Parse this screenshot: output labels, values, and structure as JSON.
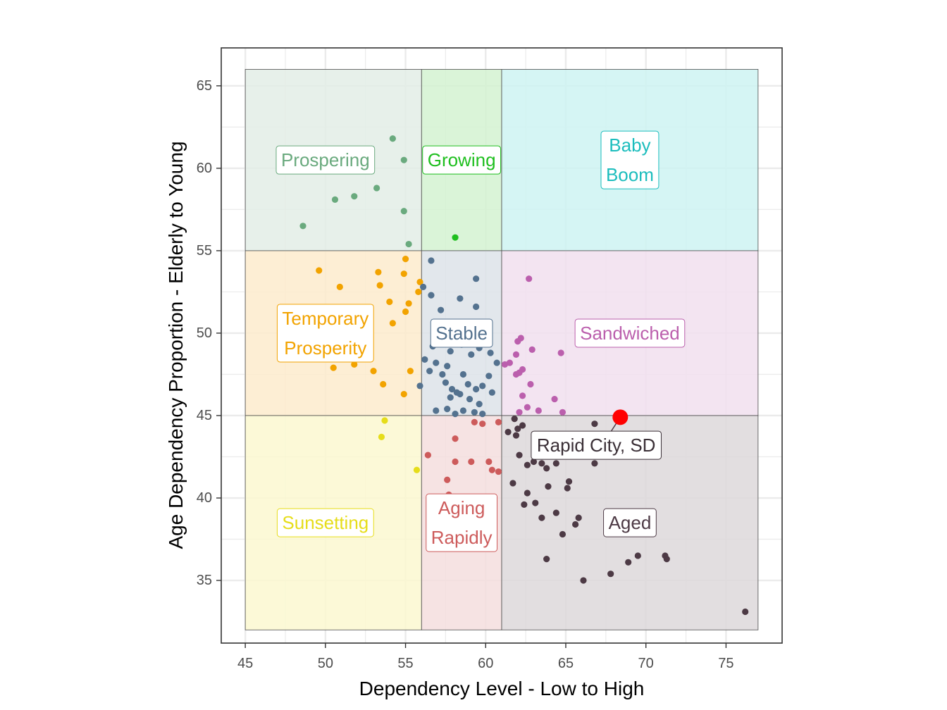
{
  "chart_data": {
    "type": "scatter",
    "xlabel": "Dependency Level - Low to High",
    "ylabel": "Age Dependency Proportion - Elderly to Young",
    "xlim": [
      43.5,
      78.5
    ],
    "ylim": [
      31.2,
      67.3
    ],
    "x_ticks": [
      45,
      50,
      55,
      60,
      65,
      70,
      75
    ],
    "y_ticks": [
      35,
      40,
      45,
      50,
      55,
      60,
      65
    ],
    "grid": true,
    "legend": "none",
    "regions": [
      {
        "label": [
          "Prospering"
        ],
        "x": [
          45,
          56
        ],
        "y": [
          55,
          66
        ],
        "color": "#6aaa7e",
        "fill": "#e3ede6",
        "label_at": [
          50,
          60.5
        ]
      },
      {
        "label": [
          "Growing"
        ],
        "x": [
          56,
          61
        ],
        "y": [
          55,
          66
        ],
        "color": "#1fbf1f",
        "fill": "#d3f2d1",
        "label_at": [
          58.5,
          60.5
        ]
      },
      {
        "label": [
          "Baby",
          "Boom"
        ],
        "x": [
          61,
          77
        ],
        "y": [
          55,
          66
        ],
        "color": "#1cbdbd",
        "fill": "#cef3f2",
        "label_at": [
          69,
          60.5
        ]
      },
      {
        "label": [
          "Temporary",
          "Prosperity"
        ],
        "x": [
          45,
          56
        ],
        "y": [
          45,
          55
        ],
        "color": "#f2a300",
        "fill": "#fdebcc",
        "label_at": [
          50,
          50
        ]
      },
      {
        "label": [
          "Stable"
        ],
        "x": [
          56,
          61
        ],
        "y": [
          45,
          55
        ],
        "color": "#54728f",
        "fill": "#dde3e9",
        "label_at": [
          58.5,
          50
        ]
      },
      {
        "label": [
          "Sandwiched"
        ],
        "x": [
          61,
          77
        ],
        "y": [
          45,
          55
        ],
        "color": "#bb5fad",
        "fill": "#f1dfef",
        "label_at": [
          69,
          50
        ]
      },
      {
        "label": [
          "Sunsetting"
        ],
        "x": [
          45,
          56
        ],
        "y": [
          32,
          45
        ],
        "color": "#e6dd1a",
        "fill": "#fbf8d0",
        "label_at": [
          50,
          38.5
        ]
      },
      {
        "label": [
          "Aging",
          "Rapidly"
        ],
        "x": [
          56,
          61
        ],
        "y": [
          32,
          45
        ],
        "color": "#cd5b5b",
        "fill": "#f4dede",
        "label_at": [
          58.5,
          38.5
        ]
      },
      {
        "label": [
          "Aged"
        ],
        "x": [
          61,
          77
        ],
        "y": [
          32,
          45
        ],
        "color": "#4d3a45",
        "fill": "#ddd8da",
        "label_at": [
          69,
          38.5
        ]
      }
    ],
    "series": [
      {
        "color": "#6aaa7e",
        "points": [
          [
            48.6,
            56.5
          ],
          [
            50.6,
            58.1
          ],
          [
            51.8,
            58.3
          ],
          [
            53.2,
            58.8
          ],
          [
            54.2,
            61.8
          ],
          [
            54.9,
            60.5
          ],
          [
            54.9,
            57.4
          ],
          [
            55.2,
            55.4
          ]
        ]
      },
      {
        "color": "#1fbf1f",
        "points": [
          [
            58.1,
            55.8
          ]
        ]
      },
      {
        "color": "#f2a300",
        "points": [
          [
            49.6,
            53.8
          ],
          [
            50.9,
            52.8
          ],
          [
            53.3,
            53.7
          ],
          [
            53.4,
            52.9
          ],
          [
            54.0,
            51.9
          ],
          [
            54.2,
            50.6
          ],
          [
            54.9,
            53.6
          ],
          [
            55.0,
            54.5
          ],
          [
            55.0,
            51.3
          ],
          [
            55.2,
            51.8
          ],
          [
            55.8,
            52.5
          ],
          [
            55.9,
            53.1
          ],
          [
            50.5,
            47.9
          ],
          [
            51.8,
            48.1
          ],
          [
            53.0,
            47.7
          ],
          [
            53.6,
            46.9
          ],
          [
            54.9,
            46.3
          ],
          [
            55.3,
            47.7
          ],
          [
            52.0,
            49.0
          ]
        ]
      },
      {
        "color": "#54728f",
        "points": [
          [
            56.6,
            54.4
          ],
          [
            56.1,
            52.8
          ],
          [
            56.6,
            52.3
          ],
          [
            57.2,
            51.4
          ],
          [
            58.4,
            52.1
          ],
          [
            59.4,
            53.3
          ],
          [
            59.4,
            51.6
          ],
          [
            56.7,
            49.2
          ],
          [
            57.2,
            50.2
          ],
          [
            57.8,
            48.9
          ],
          [
            58.5,
            49.3
          ],
          [
            59.1,
            48.7
          ],
          [
            59.6,
            49.1
          ],
          [
            60.3,
            48.8
          ],
          [
            60.7,
            48.2
          ],
          [
            56.2,
            48.4
          ],
          [
            56.5,
            47.7
          ],
          [
            56.9,
            48.2
          ],
          [
            57.3,
            47.5
          ],
          [
            57.6,
            48.0
          ],
          [
            57.5,
            47.0
          ],
          [
            57.9,
            46.6
          ],
          [
            58.2,
            46.4
          ],
          [
            58.6,
            47.5
          ],
          [
            58.9,
            46.9
          ],
          [
            59.4,
            46.6
          ],
          [
            59.8,
            46.8
          ],
          [
            60.2,
            47.4
          ],
          [
            60.4,
            46.4
          ],
          [
            57.8,
            46.1
          ],
          [
            58.4,
            46.3
          ],
          [
            59.0,
            46.0
          ],
          [
            59.6,
            45.7
          ],
          [
            56.9,
            45.3
          ],
          [
            57.6,
            45.4
          ],
          [
            58.1,
            45.1
          ],
          [
            58.6,
            45.3
          ],
          [
            59.3,
            45.2
          ],
          [
            59.8,
            45.1
          ],
          [
            55.9,
            46.8
          ]
        ]
      },
      {
        "color": "#bb5fad",
        "points": [
          [
            62.7,
            53.3
          ],
          [
            62.0,
            49.5
          ],
          [
            62.2,
            49.7
          ],
          [
            61.9,
            48.7
          ],
          [
            62.9,
            49.0
          ],
          [
            64.7,
            48.8
          ],
          [
            61.5,
            48.2
          ],
          [
            61.2,
            48.1
          ],
          [
            62.3,
            47.8
          ],
          [
            61.9,
            47.5
          ],
          [
            62.1,
            47.6
          ],
          [
            62.8,
            46.9
          ],
          [
            62.3,
            46.2
          ],
          [
            62.6,
            45.5
          ],
          [
            63.3,
            45.3
          ],
          [
            64.3,
            46.0
          ],
          [
            64.8,
            45.2
          ],
          [
            62.1,
            45.2
          ]
        ]
      },
      {
        "color": "#e6dd1a",
        "points": [
          [
            53.7,
            44.7
          ],
          [
            53.5,
            43.7
          ],
          [
            55.7,
            41.7
          ]
        ]
      },
      {
        "color": "#cd5b5b",
        "points": [
          [
            56.4,
            42.6
          ],
          [
            57.6,
            41.1
          ],
          [
            58.1,
            43.6
          ],
          [
            58.1,
            42.2
          ],
          [
            59.1,
            42.2
          ],
          [
            59.3,
            44.6
          ],
          [
            59.8,
            44.5
          ],
          [
            60.2,
            42.2
          ],
          [
            60.4,
            41.7
          ],
          [
            60.8,
            41.6
          ],
          [
            60.8,
            44.6
          ],
          [
            57.7,
            40.2
          ]
        ]
      },
      {
        "color": "#4d3a45",
        "points": [
          [
            61.4,
            44.0
          ],
          [
            61.8,
            44.8
          ],
          [
            62.0,
            44.2
          ],
          [
            61.9,
            43.8
          ],
          [
            62.3,
            44.4
          ],
          [
            62.1,
            42.6
          ],
          [
            62.6,
            42.0
          ],
          [
            63.0,
            42.2
          ],
          [
            63.5,
            42.1
          ],
          [
            63.8,
            41.8
          ],
          [
            64.4,
            42.1
          ],
          [
            65.2,
            41.0
          ],
          [
            65.1,
            40.6
          ],
          [
            66.8,
            42.1
          ],
          [
            66.8,
            44.5
          ],
          [
            61.7,
            40.9
          ],
          [
            62.6,
            40.3
          ],
          [
            63.1,
            39.7
          ],
          [
            62.4,
            39.6
          ],
          [
            63.9,
            40.7
          ],
          [
            63.5,
            38.8
          ],
          [
            64.4,
            39.1
          ],
          [
            64.8,
            37.8
          ],
          [
            65.6,
            38.4
          ],
          [
            65.8,
            38.8
          ],
          [
            63.8,
            36.3
          ],
          [
            66.1,
            35.0
          ],
          [
            67.8,
            35.4
          ],
          [
            68.9,
            36.1
          ],
          [
            69.5,
            36.5
          ],
          [
            71.2,
            36.5
          ],
          [
            71.3,
            36.3
          ],
          [
            76.2,
            33.1
          ]
        ]
      }
    ],
    "highlight": {
      "label": "Rapid City, SD",
      "x": 68.4,
      "y": 44.9,
      "color": "#ff0000",
      "label_at": [
        66.9,
        43.2
      ]
    }
  }
}
